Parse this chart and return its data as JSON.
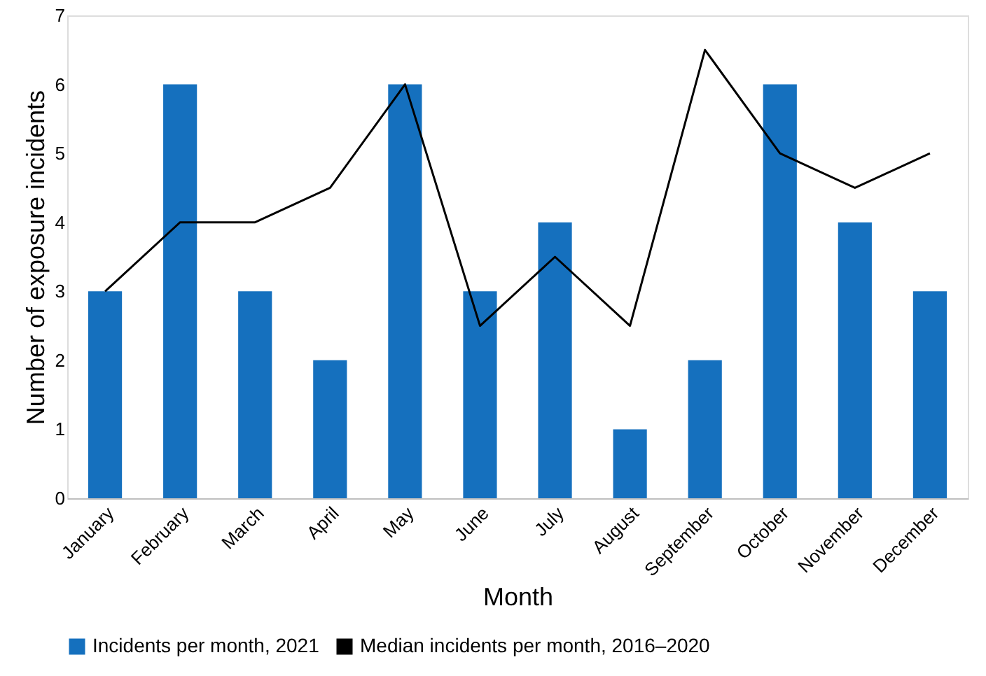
{
  "chart_data": {
    "type": "bar",
    "xlabel": "Month",
    "ylabel": "Number of exposure incidents",
    "categories": [
      "January",
      "February",
      "March",
      "April",
      "May",
      "June",
      "July",
      "August",
      "September",
      "October",
      "November",
      "December"
    ],
    "series": [
      {
        "name": "Incidents per month, 2021",
        "color": "#1570be",
        "values": [
          3,
          6,
          3,
          2,
          6,
          3,
          4,
          1,
          2,
          6,
          4,
          3
        ]
      },
      {
        "name": "Median incidents per month, 2016–2020",
        "type": "line",
        "color": "#000000",
        "values": [
          3,
          4,
          4,
          4.5,
          6,
          2.5,
          3.5,
          2.5,
          6.5,
          5,
          4.5,
          5
        ]
      }
    ],
    "ylim": [
      0,
      7
    ],
    "yticks": [
      0,
      1,
      2,
      3,
      4,
      5,
      6,
      7
    ],
    "grid": false,
    "legend": "bottom",
    "marker": "none",
    "line_style": "solid"
  }
}
